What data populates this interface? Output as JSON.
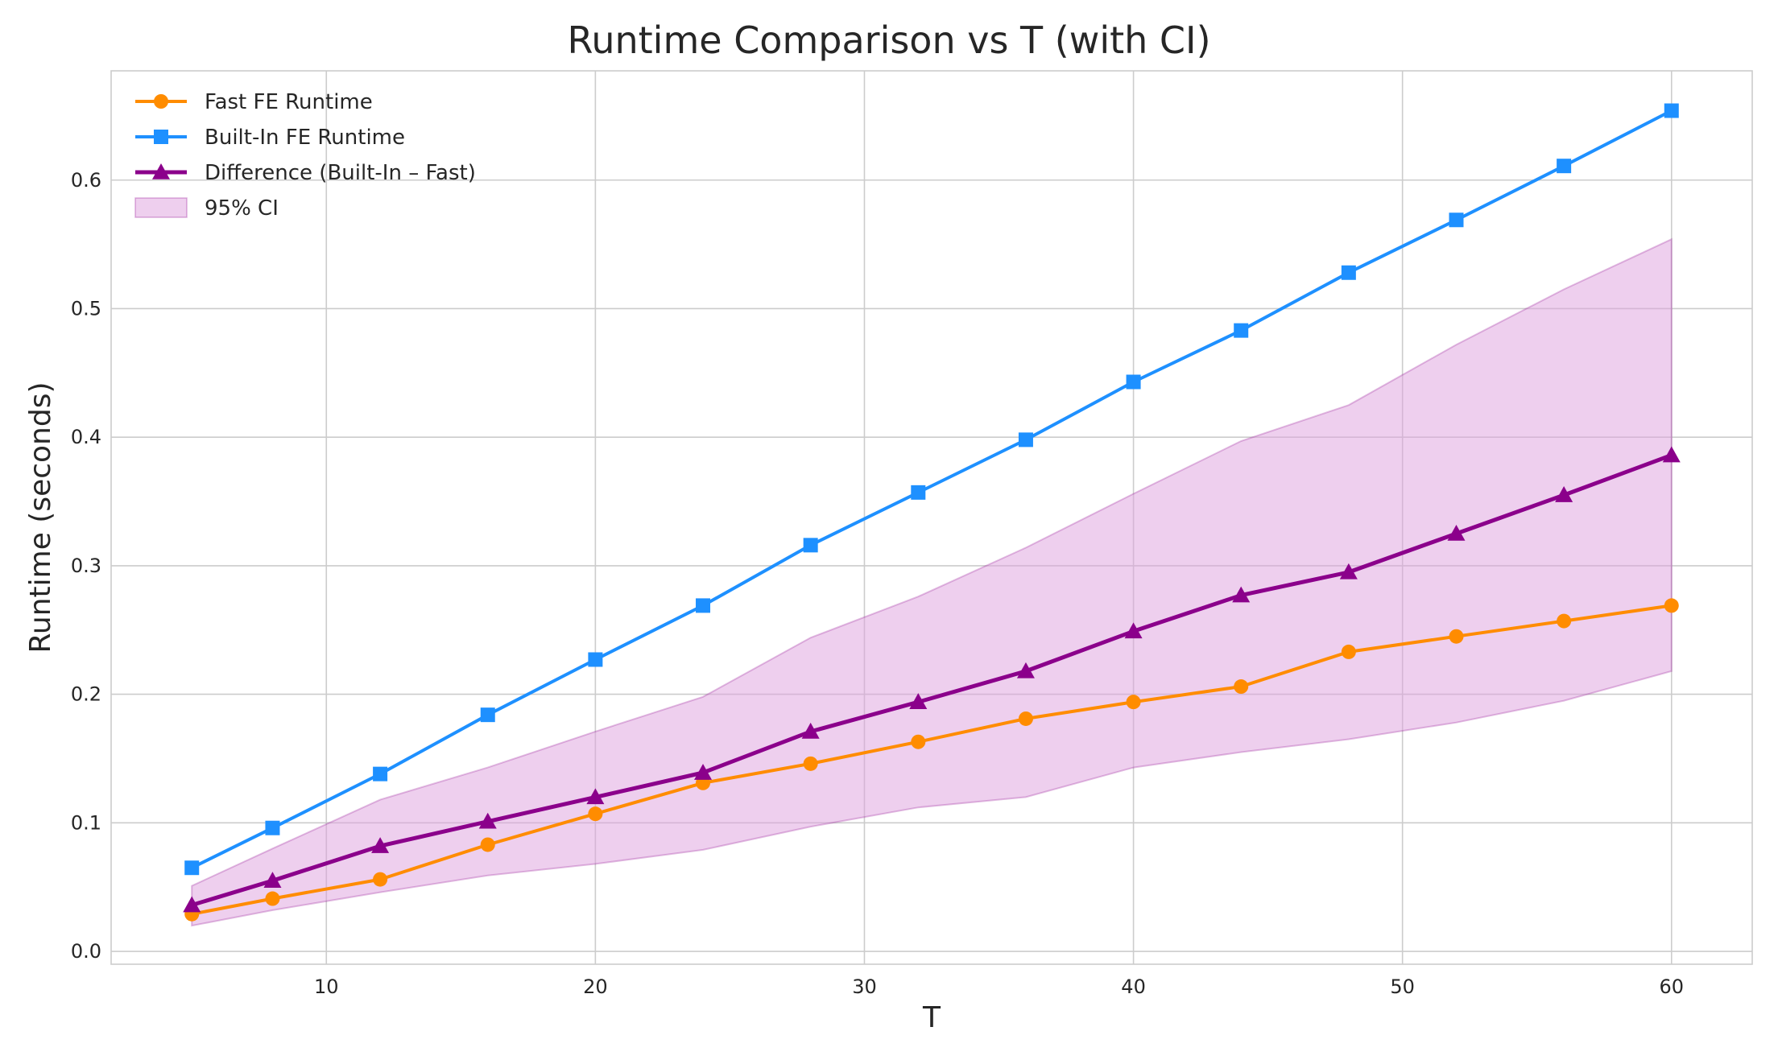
{
  "chart_data": {
    "type": "line",
    "title": "Runtime Comparison vs T (with CI)",
    "xlabel": "T",
    "ylabel": "Runtime (seconds)",
    "xlim": [
      2,
      63
    ],
    "ylim": [
      -0.01,
      0.685
    ],
    "x_ticks": [
      10,
      20,
      30,
      40,
      50,
      60
    ],
    "y_ticks": [
      0.0,
      0.1,
      0.2,
      0.3,
      0.4,
      0.5,
      0.6
    ],
    "x_tick_labels": [
      "10",
      "20",
      "30",
      "40",
      "50",
      "60"
    ],
    "y_tick_labels": [
      "0.0",
      "0.1",
      "0.2",
      "0.3",
      "0.4",
      "0.5",
      "0.6"
    ],
    "grid": true,
    "legend_position": "top-left",
    "x": [
      5,
      8,
      12,
      16,
      20,
      24,
      28,
      32,
      36,
      40,
      44,
      48,
      52,
      56,
      60
    ],
    "series": [
      {
        "name": "Fast FE Runtime",
        "marker": "circle",
        "color": "#FF8C00",
        "values": [
          0.029,
          0.041,
          0.056,
          0.083,
          0.107,
          0.131,
          0.146,
          0.163,
          0.181,
          0.194,
          0.206,
          0.233,
          0.245,
          0.257,
          0.269
        ]
      },
      {
        "name": "Built-In FE Runtime",
        "marker": "square",
        "color": "#1E90FF",
        "values": [
          0.065,
          0.096,
          0.138,
          0.184,
          0.227,
          0.269,
          0.316,
          0.357,
          0.398,
          0.443,
          0.483,
          0.528,
          0.569,
          0.611,
          0.654
        ]
      },
      {
        "name": "Difference (Built-In – Fast)",
        "marker": "triangle",
        "color": "#8B008B",
        "values": [
          0.036,
          0.055,
          0.082,
          0.101,
          0.12,
          0.139,
          0.171,
          0.194,
          0.218,
          0.249,
          0.277,
          0.295,
          0.325,
          0.355,
          0.386
        ]
      }
    ],
    "ci_band": {
      "name": "95% CI",
      "color": "#DDA0DD",
      "lower": [
        0.02,
        0.032,
        0.046,
        0.059,
        0.068,
        0.079,
        0.097,
        0.112,
        0.12,
        0.143,
        0.155,
        0.165,
        0.178,
        0.195,
        0.218
      ],
      "upper": [
        0.051,
        0.08,
        0.118,
        0.143,
        0.171,
        0.198,
        0.244,
        0.276,
        0.314,
        0.356,
        0.397,
        0.425,
        0.472,
        0.515,
        0.554
      ]
    }
  }
}
